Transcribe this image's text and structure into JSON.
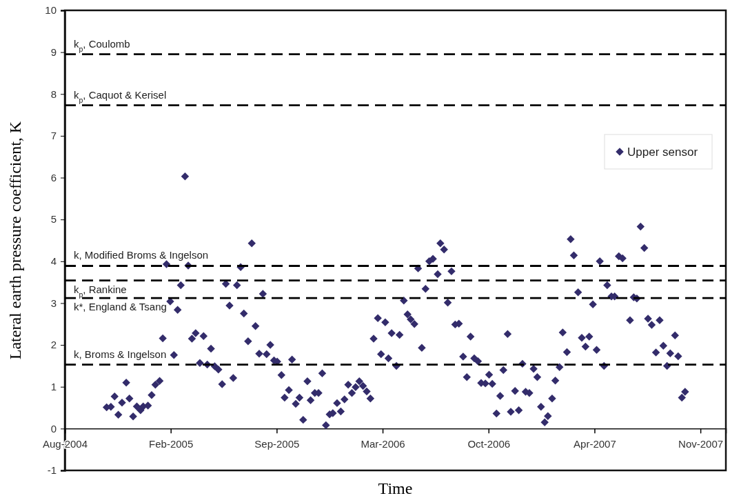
{
  "chart_data": {
    "type": "scatter",
    "xlabel": "Time",
    "ylabel": "Lateral earth pressure coefficient, K",
    "xlim": [
      "2004-08-01",
      "2008-01-01"
    ],
    "xticks": [
      {
        "value": "2004-08-01",
        "label": "Aug-2004"
      },
      {
        "value": "2005-02-17",
        "label": "Feb-2005"
      },
      {
        "value": "2005-09-05",
        "label": "Sep-2005"
      },
      {
        "value": "2006-03-24",
        "label": "Mar-2006"
      },
      {
        "value": "2006-10-10",
        "label": "Oct-2006"
      },
      {
        "value": "2007-04-28",
        "label": "Apr-2007"
      },
      {
        "value": "2007-11-14",
        "label": "Nov-2007"
      }
    ],
    "ylim": [
      -1,
      10
    ],
    "yticks": [
      -1,
      0,
      1,
      2,
      3,
      4,
      5,
      6,
      7,
      8,
      9,
      10
    ],
    "grid": false,
    "legend": "top right",
    "marker": "diamond",
    "ref_lines": [
      {
        "axis": "y",
        "value": 8.95,
        "label": "k$_{p}$, Coulomb",
        "color": "#000000",
        "line_style": "dashed"
      },
      {
        "axis": "y",
        "value": 7.73,
        "label": "k$_{p}$, Caquot & Kerisel",
        "color": "#000000",
        "line_style": "dashed"
      },
      {
        "axis": "y",
        "value": 3.89,
        "label": "k, Modified Broms & Ingelson",
        "color": "#000000",
        "line_style": "dashed"
      },
      {
        "axis": "y",
        "value": 3.54,
        "label": "k$_{p}$, Rankine",
        "color": "#000000",
        "line_style": "dashed"
      },
      {
        "axis": "y",
        "value": 3.12,
        "label": "k*, England & Tsang",
        "color": "#000000",
        "line_style": "dashed"
      },
      {
        "axis": "y",
        "value": 1.53,
        "label": "k, Broms & Ingelson",
        "color": "#000000",
        "line_style": "dashed"
      }
    ],
    "series": [
      {
        "name": "Upper sensor",
        "color": "#332c6b",
        "x": [
          "2004-10-19",
          "2004-10-27",
          "2004-11-03",
          "2004-11-10",
          "2004-11-17",
          "2004-11-25",
          "2004-12-01",
          "2004-12-08",
          "2004-12-15",
          "2004-12-22",
          "2004-12-27",
          "2005-01-05",
          "2005-01-12",
          "2005-01-19",
          "2005-01-27",
          "2005-02-02",
          "2005-02-09",
          "2005-02-16",
          "2005-02-23",
          "2005-03-02",
          "2005-03-08",
          "2005-03-16",
          "2005-03-22",
          "2005-03-29",
          "2005-04-05",
          "2005-04-13",
          "2005-04-20",
          "2005-04-27",
          "2005-05-04",
          "2005-05-11",
          "2005-05-18",
          "2005-05-25",
          "2005-06-01",
          "2005-06-08",
          "2005-06-15",
          "2005-06-22",
          "2005-06-29",
          "2005-07-05",
          "2005-07-13",
          "2005-07-20",
          "2005-07-27",
          "2005-08-03",
          "2005-08-10",
          "2005-08-17",
          "2005-08-24",
          "2005-08-31",
          "2005-09-06",
          "2005-09-14",
          "2005-09-20",
          "2005-09-28",
          "2005-10-04",
          "2005-10-11",
          "2005-10-18",
          "2005-10-25",
          "2005-11-02",
          "2005-11-08",
          "2005-11-16",
          "2005-11-23",
          "2005-11-30",
          "2005-12-07",
          "2005-12-14",
          "2005-12-20",
          "2005-12-28",
          "2006-01-04",
          "2006-01-11",
          "2006-01-18",
          "2006-01-25",
          "2006-02-01",
          "2006-02-08",
          "2006-02-15",
          "2006-02-22",
          "2006-03-01",
          "2006-03-07",
          "2006-03-15",
          "2006-03-21",
          "2006-03-29",
          "2006-04-04",
          "2006-04-10",
          "2006-04-19",
          "2006-04-25",
          "2006-05-03",
          "2006-05-10",
          "2006-05-16",
          "2006-05-23",
          "2006-05-30",
          "2006-06-06",
          "2006-06-13",
          "2006-06-20",
          "2006-06-27",
          "2006-07-06",
          "2006-07-11",
          "2006-07-18",
          "2006-07-25",
          "2006-08-01",
          "2006-08-08",
          "2006-08-15",
          "2006-08-23",
          "2006-08-30",
          "2006-09-06",
          "2006-09-13",
          "2006-09-20",
          "2006-09-26",
          "2006-10-04",
          "2006-10-11",
          "2006-10-17",
          "2006-10-25",
          "2006-11-01",
          "2006-11-07",
          "2006-11-15",
          "2006-11-21",
          "2006-11-29",
          "2006-12-06",
          "2006-12-13",
          "2006-12-19",
          "2006-12-26",
          "2007-01-03",
          "2007-01-10",
          "2007-01-17",
          "2007-01-24",
          "2007-01-30",
          "2007-02-07",
          "2007-02-13",
          "2007-02-21",
          "2007-02-27",
          "2007-03-07",
          "2007-03-14",
          "2007-03-20",
          "2007-03-28",
          "2007-04-04",
          "2007-04-11",
          "2007-04-18",
          "2007-04-25",
          "2007-05-02",
          "2007-05-08",
          "2007-05-16",
          "2007-05-22",
          "2007-05-30",
          "2007-06-05",
          "2007-06-13",
          "2007-06-20",
          "2007-07-04",
          "2007-07-11",
          "2007-07-17",
          "2007-07-24",
          "2007-07-31",
          "2007-08-07",
          "2007-08-14",
          "2007-08-22",
          "2007-08-29",
          "2007-09-05",
          "2007-09-12",
          "2007-09-18",
          "2007-09-27",
          "2007-10-03",
          "2007-10-10",
          "2007-10-16"
        ],
        "values": [
          0.51,
          0.52,
          0.77,
          0.33,
          0.62,
          1.1,
          0.72,
          0.29,
          0.53,
          0.44,
          0.53,
          0.55,
          0.8,
          1.05,
          1.14,
          2.16,
          3.93,
          3.04,
          1.76,
          2.84,
          3.43,
          6.03,
          3.9,
          2.15,
          2.28,
          1.57,
          2.21,
          1.53,
          1.91,
          1.49,
          1.41,
          1.06,
          3.46,
          2.94,
          1.21,
          3.43,
          3.86,
          2.75,
          2.09,
          4.43,
          2.45,
          1.79,
          3.22,
          1.78,
          2.0,
          1.63,
          1.6,
          1.28,
          0.74,
          0.92,
          1.65,
          0.59,
          0.74,
          0.21,
          1.13,
          0.68,
          0.85,
          0.85,
          1.32,
          0.08,
          0.34,
          0.37,
          0.61,
          0.41,
          0.7,
          1.05,
          0.85,
          0.99,
          1.13,
          1.02,
          0.89,
          0.72,
          2.15,
          2.64,
          1.78,
          2.54,
          1.68,
          2.28,
          1.5,
          2.24,
          3.06,
          2.73,
          2.61,
          2.5,
          3.83,
          1.93,
          3.34,
          4.0,
          4.06,
          3.69,
          4.43,
          4.28,
          3.01,
          3.76,
          2.49,
          2.51,
          1.72,
          1.23,
          2.2,
          1.68,
          1.61,
          1.09,
          1.08,
          1.29,
          1.07,
          0.36,
          0.78,
          1.4,
          2.26,
          0.4,
          0.9,
          0.44,
          1.55,
          0.88,
          0.85,
          1.43,
          1.23,
          0.52,
          0.15,
          0.3,
          0.72,
          1.15,
          1.47,
          2.3,
          1.83,
          4.53,
          4.14,
          3.26,
          2.17,
          1.96,
          2.2,
          2.97,
          1.88,
          4.0,
          1.5,
          3.43,
          3.16,
          3.16,
          4.12,
          4.07,
          2.59,
          3.14,
          3.11,
          4.83,
          4.32,
          2.63,
          2.48,
          1.82,
          2.59,
          1.98,
          1.5,
          1.8,
          2.23,
          1.73,
          0.74,
          0.88
        ]
      }
    ]
  }
}
